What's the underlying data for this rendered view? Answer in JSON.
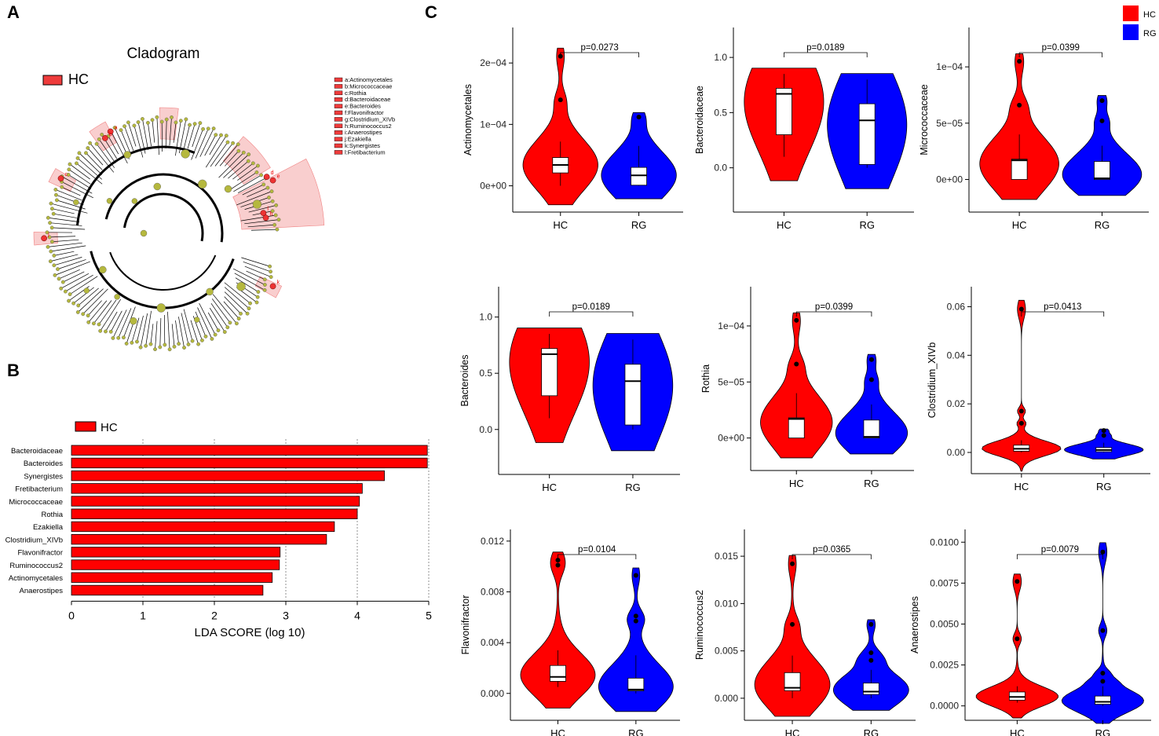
{
  "panels": {
    "a": "A",
    "b": "B",
    "c": "C"
  },
  "colors": {
    "hc": "#ff0000",
    "rg": "#0000ff",
    "cladogram_node": "#b5b83e",
    "highlight": "#f4a6a6"
  },
  "cladogram": {
    "title": "Cladogram",
    "legend_label": "HC",
    "key": [
      "a:Actinomycetales",
      "b:Micrococcaceae",
      "c:Rothia",
      "d:Bacteroidaceae",
      "e:Bacteroides",
      "f:Flavonifractor",
      "g:Clostridium_XIVb",
      "h:Ruminococcus2",
      "i:Anaerostipes",
      "j:Ezakiella",
      "k:Synergistes",
      "l:Fretibacterium"
    ],
    "point_labels": [
      "a",
      "b",
      "c",
      "d",
      "e",
      "f",
      "g",
      "h",
      "i",
      "j",
      "k",
      "l"
    ]
  },
  "lda": {
    "legend_label": "HC",
    "xlabel": "LDA SCORE (log 10)",
    "xlim": [
      0,
      5
    ],
    "ticks": [
      0,
      1,
      2,
      3,
      4,
      5
    ],
    "taxa": [
      "Bacteroidaceae",
      "Bacteroides",
      "Synergistes",
      "Fretibacterium",
      "Micrococcaceae",
      "Rothia",
      "Ezakiella",
      "Clostridium_XIVb",
      "Flavonifractor",
      "Ruminococcus2",
      "Actinomycetales",
      "Anaerostipes"
    ],
    "scores": [
      4.98,
      4.98,
      4.38,
      4.07,
      4.03,
      4.0,
      3.68,
      3.57,
      2.92,
      2.91,
      2.81,
      2.68
    ]
  },
  "chart_data": [
    {
      "type": "violin",
      "ylabel": "Actinomycetales",
      "categories": [
        "HC",
        "RG"
      ],
      "p_label": "p=0.0273",
      "ylim": [
        -3e-05,
        0.000245
      ],
      "ticks": [
        0,
        0.0001,
        0.0002
      ],
      "tick_labels": [
        "0e+00",
        "1e−04",
        "2e−04"
      ],
      "groups": [
        {
          "name": "HC",
          "min": 0,
          "q1": 2.1e-05,
          "median": 3.4e-05,
          "q3": 4.6e-05,
          "max": 7.2e-05,
          "outliers": [
            0.00014,
            0.000211
          ]
        },
        {
          "name": "RG",
          "min": 0,
          "q1": 1e-06,
          "median": 1.7e-05,
          "q3": 3e-05,
          "max": 6.5e-05,
          "outliers": [
            0.000112
          ]
        }
      ]
    },
    {
      "type": "violin",
      "ylabel": "Bacteroidaceae",
      "categories": [
        "HC",
        "RG"
      ],
      "p_label": "p=0.0189",
      "ylim": [
        -0.33,
        1.2
      ],
      "ticks": [
        0,
        0.5,
        1
      ],
      "tick_labels": [
        "0.0",
        "0.5",
        "1.0"
      ],
      "groups": [
        {
          "name": "HC",
          "min": 0.1,
          "q1": 0.3,
          "median": 0.67,
          "q3": 0.72,
          "max": 0.85,
          "outliers": []
        },
        {
          "name": "RG",
          "min": 0.0,
          "q1": 0.03,
          "median": 0.43,
          "q3": 0.58,
          "max": 0.8,
          "outliers": []
        }
      ]
    },
    {
      "type": "violin",
      "ylabel": "Micrococcaceae",
      "categories": [
        "HC",
        "RG"
      ],
      "p_label": "p=0.0399",
      "ylim": [
        -2.2e-05,
        0.000128
      ],
      "ticks": [
        0,
        5e-05,
        0.0001
      ],
      "tick_labels": [
        "0e+00",
        "5e−05",
        "1e−04"
      ],
      "groups": [
        {
          "name": "HC",
          "min": 0,
          "q1": 0.0,
          "median": 1.7e-05,
          "q3": 1.8e-05,
          "max": 4e-05,
          "outliers": [
            6.6e-05,
            0.000105
          ]
        },
        {
          "name": "RG",
          "min": 0,
          "q1": 0.0,
          "median": 1e-06,
          "q3": 1.6e-05,
          "max": 3e-05,
          "outliers": [
            5.2e-05,
            7e-05
          ]
        }
      ]
    },
    {
      "type": "violin",
      "ylabel": "Bacteroides",
      "categories": [
        "HC",
        "RG"
      ],
      "p_label": "p=0.0189",
      "ylim": [
        -0.33,
        1.2
      ],
      "ticks": [
        0,
        0.5,
        1
      ],
      "tick_labels": [
        "0.0",
        "0.5",
        "1.0"
      ],
      "groups": [
        {
          "name": "HC",
          "min": 0.1,
          "q1": 0.3,
          "median": 0.67,
          "q3": 0.72,
          "max": 0.85,
          "outliers": []
        },
        {
          "name": "RG",
          "min": 0.0,
          "q1": 0.04,
          "median": 0.43,
          "q3": 0.58,
          "max": 0.8,
          "outliers": []
        }
      ]
    },
    {
      "type": "violin",
      "ylabel": "Rothia",
      "categories": [
        "HC",
        "RG"
      ],
      "p_label": "p=0.0399",
      "ylim": [
        -2.2e-05,
        0.000128
      ],
      "ticks": [
        0,
        5e-05,
        0.0001
      ],
      "tick_labels": [
        "0e+00",
        "5e−05",
        "1e−04"
      ],
      "groups": [
        {
          "name": "HC",
          "min": 0,
          "q1": 0.0,
          "median": 1.7e-05,
          "q3": 1.8e-05,
          "max": 4e-05,
          "outliers": [
            6.6e-05,
            0.000105
          ]
        },
        {
          "name": "RG",
          "min": 0,
          "q1": 0.0,
          "median": 1e-06,
          "q3": 1.6e-05,
          "max": 3e-05,
          "outliers": [
            5.2e-05,
            7e-05
          ]
        }
      ]
    },
    {
      "type": "violin",
      "ylabel": "Clostridium_XIVb",
      "categories": [
        "HC",
        "RG"
      ],
      "p_label": "p=0.0413",
      "ylim": [
        -0.0055,
        0.065
      ],
      "ticks": [
        0,
        0.02,
        0.04,
        0.06
      ],
      "tick_labels": [
        "0.00",
        "0.02",
        "0.04",
        "0.06"
      ],
      "groups": [
        {
          "name": "HC",
          "min": 0,
          "q1": 0.0005,
          "median": 0.0015,
          "q3": 0.003,
          "max": 0.005,
          "outliers": [
            0.012,
            0.017,
            0.059
          ]
        },
        {
          "name": "RG",
          "min": 0,
          "q1": 0.0003,
          "median": 0.001,
          "q3": 0.002,
          "max": 0.004,
          "outliers": [
            0.007,
            0.009
          ]
        }
      ]
    },
    {
      "type": "violin",
      "ylabel": "Flavonifractor",
      "categories": [
        "HC",
        "RG"
      ],
      "p_label": "p=0.0104",
      "ylim": [
        -0.0015,
        0.0123
      ],
      "ticks": [
        0,
        0.004,
        0.008,
        0.012
      ],
      "tick_labels": [
        "0.000",
        "0.004",
        "0.008",
        "0.012"
      ],
      "groups": [
        {
          "name": "HC",
          "min": 0.0005,
          "q1": 0.00095,
          "median": 0.0013,
          "q3": 0.0022,
          "max": 0.0034,
          "outliers": [
            0.0101,
            0.0105
          ]
        },
        {
          "name": "RG",
          "min": 0,
          "q1": 0.0002,
          "median": 0.0003,
          "q3": 0.0012,
          "max": 0.003,
          "outliers": [
            0.0057,
            0.0061,
            0.0093
          ]
        }
      ]
    },
    {
      "type": "violin",
      "ylabel": "Ruminococcus2",
      "categories": [
        "HC",
        "RG"
      ],
      "p_label": "p=0.0365",
      "ylim": [
        -0.0015,
        0.017
      ],
      "ticks": [
        0,
        0.005,
        0.01,
        0.015
      ],
      "tick_labels": [
        "0.000",
        "0.005",
        "0.010",
        "0.015"
      ],
      "groups": [
        {
          "name": "HC",
          "min": 0,
          "q1": 0.0008,
          "median": 0.0011,
          "q3": 0.0027,
          "max": 0.0045,
          "outliers": [
            0.0078,
            0.0142
          ]
        },
        {
          "name": "RG",
          "min": 0,
          "q1": 0.0004,
          "median": 0.0007,
          "q3": 0.0016,
          "max": 0.003,
          "outliers": [
            0.004,
            0.0048,
            0.0078
          ]
        }
      ]
    },
    {
      "type": "violin",
      "ylabel": "Anaerostipes",
      "categories": [
        "HC",
        "RG"
      ],
      "p_label": "p=0.0079",
      "ylim": [
        -0.0004,
        0.0103
      ],
      "ticks": [
        0,
        0.0025,
        0.005,
        0.0075,
        0.01
      ],
      "tick_labels": [
        "0.0000",
        "0.0025",
        "0.0050",
        "0.0075",
        "0.0100"
      ],
      "groups": [
        {
          "name": "HC",
          "min": 0.0002,
          "q1": 0.00035,
          "median": 0.00055,
          "q3": 0.00085,
          "max": 0.0012,
          "outliers": [
            0.0041,
            0.0076
          ]
        },
        {
          "name": "RG",
          "min": 0,
          "q1": 0.0001,
          "median": 0.00025,
          "q3": 0.0006,
          "max": 0.0012,
          "outliers": [
            0.0015,
            0.002,
            0.0046,
            0.0094
          ]
        }
      ]
    }
  ],
  "legend": [
    {
      "label": "HC"
    },
    {
      "label": "RG"
    }
  ]
}
